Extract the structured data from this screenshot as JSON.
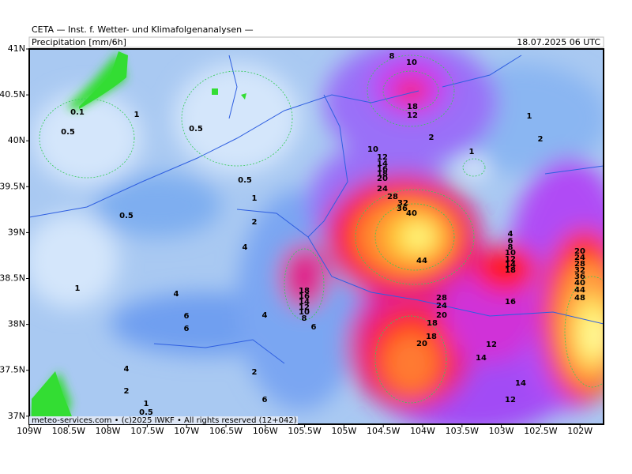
{
  "header": {
    "title": "CETA — Inst. f. Wetter- und Klimafolgenanalysen —",
    "field": "Precipitation [mm/6h]",
    "valid_time": "18.07.2025 06 UTC"
  },
  "axes": {
    "lat": [
      "41N",
      "40.5N",
      "40N",
      "39.5N",
      "39N",
      "38.5N",
      "38N",
      "37.5N",
      "37N"
    ],
    "lon": [
      "109W",
      "108.5W",
      "108W",
      "107.5W",
      "107W",
      "106.5W",
      "106W",
      "105.5W",
      "105W",
      "104.5W",
      "104W",
      "103.5W",
      "103W",
      "102.5W",
      "102W"
    ]
  },
  "footer": "meteo-services.com • (c)2025 IWKF • All rights reserved (12+042)",
  "contour_labels": [
    "8",
    "10",
    "18",
    "12",
    "0.1",
    "1",
    "0.5",
    "0.5",
    "2",
    "1",
    "2",
    "1",
    "10",
    "12",
    "14",
    "16",
    "18",
    "20",
    "24",
    "0.5",
    "1",
    "28",
    "32",
    "36",
    "40",
    "0.5",
    "2",
    "4",
    "44",
    "4",
    "6",
    "8",
    "10",
    "12",
    "14",
    "18",
    "20",
    "24",
    "28",
    "32",
    "36",
    "40",
    "44",
    "48",
    "1",
    "4",
    "18",
    "16",
    "14",
    "12",
    "10",
    "8",
    "6",
    "4",
    "6",
    "6",
    "28",
    "24",
    "20",
    "16",
    "18",
    "18",
    "20",
    "12",
    "14",
    "4",
    "2",
    "2",
    "14",
    "6",
    "12",
    "1",
    "0.5"
  ]
}
